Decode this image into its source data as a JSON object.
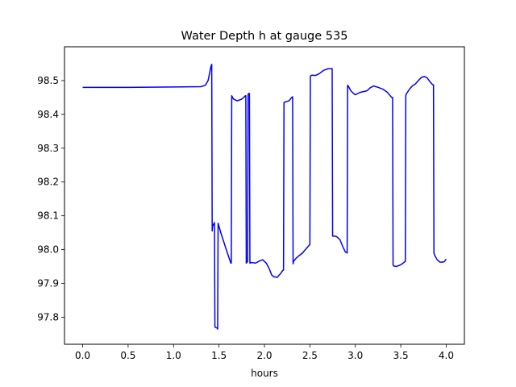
{
  "chart_data": {
    "type": "line",
    "title": "Water Depth h at gauge 535",
    "xlabel": "hours",
    "ylabel": "",
    "xlim": [
      -0.2,
      4.2
    ],
    "ylim": [
      97.72,
      98.6
    ],
    "xticks": [
      0.0,
      0.5,
      1.0,
      1.5,
      2.0,
      2.5,
      3.0,
      3.5,
      4.0
    ],
    "xtick_labels": [
      "0.0",
      "0.5",
      "1.0",
      "1.5",
      "2.0",
      "2.5",
      "3.0",
      "3.5",
      "4.0"
    ],
    "yticks": [
      97.8,
      97.9,
      98.0,
      98.1,
      98.2,
      98.3,
      98.4,
      98.5
    ],
    "ytick_labels": [
      "97.8",
      "97.9",
      "98.0",
      "98.1",
      "98.2",
      "98.3",
      "98.4",
      "98.5"
    ],
    "grid": false,
    "series": [
      {
        "color": "#0000ff",
        "x": [
          0.0,
          0.5,
          1.0,
          1.3,
          1.35,
          1.38,
          1.41,
          1.42,
          1.425,
          1.43,
          1.45,
          1.455,
          1.46,
          1.48,
          1.485,
          1.49,
          1.52,
          1.58,
          1.63,
          1.635,
          1.64,
          1.66,
          1.7,
          1.75,
          1.79,
          1.795,
          1.8,
          1.815,
          1.82,
          1.83,
          1.835,
          1.84,
          1.86,
          1.9,
          1.95,
          1.98,
          2.02,
          2.05,
          2.08,
          2.1,
          2.14,
          2.18,
          2.2,
          2.21,
          2.215,
          2.22,
          2.27,
          2.3,
          2.31,
          2.315,
          2.32,
          2.35,
          2.38,
          2.42,
          2.45,
          2.5,
          2.505,
          2.51,
          2.53,
          2.56,
          2.6,
          2.65,
          2.7,
          2.74,
          2.745,
          2.75,
          2.78,
          2.8,
          2.83,
          2.86,
          2.89,
          2.91,
          2.915,
          2.92,
          2.95,
          2.98,
          3.0,
          3.05,
          3.1,
          3.13,
          3.16,
          3.2,
          3.25,
          3.3,
          3.35,
          3.4,
          3.41,
          3.415,
          3.42,
          3.45,
          3.5,
          3.55,
          3.555,
          3.56,
          3.6,
          3.63,
          3.66,
          3.7,
          3.73,
          3.76,
          3.79,
          3.82,
          3.85,
          3.86,
          3.865,
          3.87,
          3.9,
          3.93,
          3.96,
          3.98,
          4.0
        ],
        "y": [
          98.48,
          98.48,
          98.481,
          98.482,
          98.486,
          98.5,
          98.54,
          98.548,
          98.055,
          98.07,
          98.08,
          97.772,
          97.77,
          97.768,
          97.765,
          98.078,
          98.05,
          98.0,
          97.96,
          97.96,
          98.455,
          98.445,
          98.44,
          98.445,
          98.455,
          98.455,
          97.96,
          97.965,
          98.46,
          98.462,
          98.462,
          97.96,
          97.962,
          97.96,
          97.967,
          97.97,
          97.96,
          97.945,
          97.925,
          97.92,
          97.918,
          97.93,
          97.938,
          97.94,
          98.435,
          98.436,
          98.44,
          98.45,
          98.452,
          97.958,
          97.965,
          97.975,
          97.982,
          97.99,
          98.0,
          98.015,
          98.51,
          98.515,
          98.516,
          98.515,
          98.52,
          98.53,
          98.535,
          98.535,
          98.535,
          98.04,
          98.04,
          98.037,
          98.03,
          98.01,
          97.993,
          97.99,
          98.486,
          98.485,
          98.47,
          98.462,
          98.458,
          98.465,
          98.468,
          98.47,
          98.478,
          98.484,
          98.48,
          98.475,
          98.466,
          98.45,
          98.45,
          97.955,
          97.952,
          97.95,
          97.955,
          97.965,
          98.455,
          98.46,
          98.476,
          98.485,
          98.49,
          98.502,
          98.51,
          98.512,
          98.508,
          98.497,
          98.488,
          98.487,
          97.99,
          97.985,
          97.97,
          97.963,
          97.963,
          97.965,
          97.972
        ]
      }
    ]
  }
}
